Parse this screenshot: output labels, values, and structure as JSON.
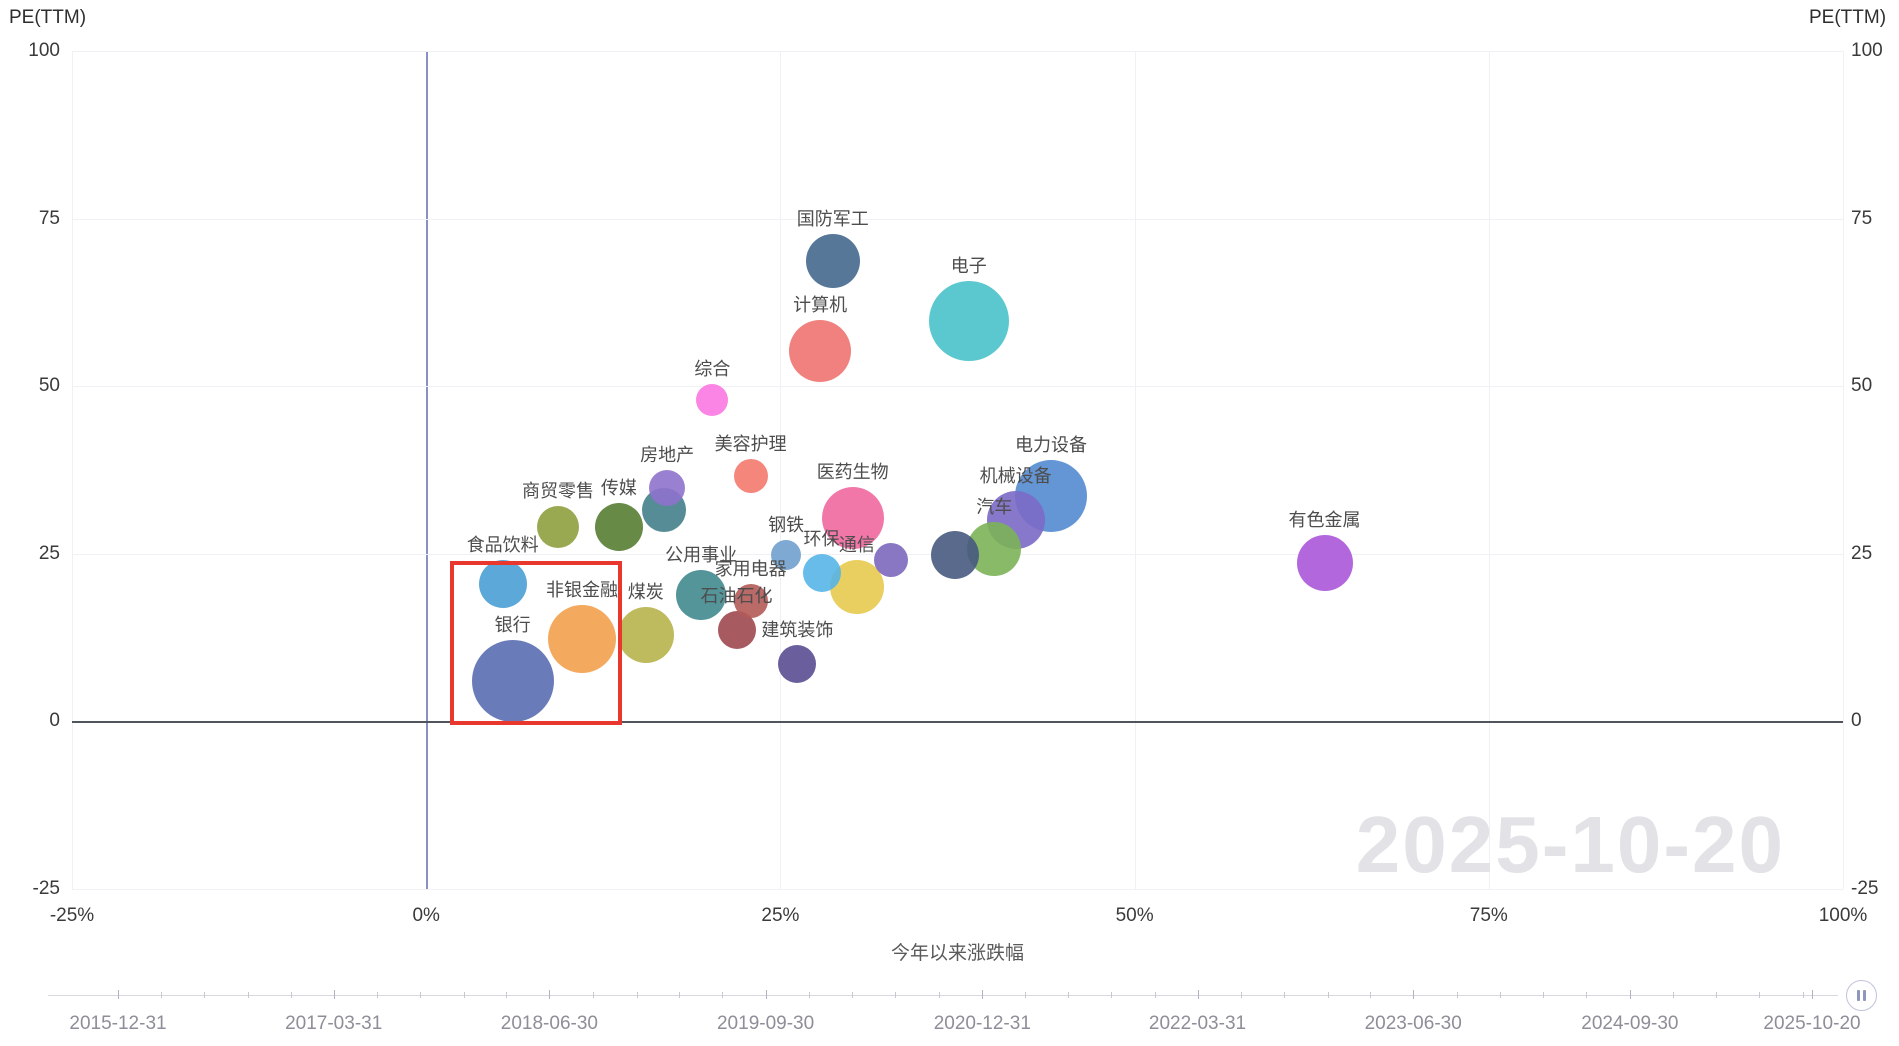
{
  "chart_data": {
    "type": "scatter",
    "title": "",
    "x_label": "今年以来涨跌幅",
    "y_label": "PE(TTM)",
    "xlim": [
      -25,
      100
    ],
    "ylim": [
      -25,
      100
    ],
    "grid": true,
    "watermark": "2025-10-20",
    "x_ticks": [
      {
        "value": -25,
        "label": "-25%"
      },
      {
        "value": 0,
        "label": "0%"
      },
      {
        "value": 25,
        "label": "25%"
      },
      {
        "value": 50,
        "label": "50%"
      },
      {
        "value": 75,
        "label": "75%"
      },
      {
        "value": 100,
        "label": "100%"
      }
    ],
    "y_ticks": [
      {
        "value": 100,
        "label": "100"
      },
      {
        "value": 75,
        "label": "75"
      },
      {
        "value": 50,
        "label": "50"
      },
      {
        "value": 25,
        "label": "25"
      },
      {
        "value": 0,
        "label": "0"
      },
      {
        "value": -25,
        "label": "-25"
      }
    ],
    "colors": {
      "zero_x_line": "#8a8fc7",
      "zero_y_line": "#50545e",
      "gridline": "#f0f0f5",
      "watermark": "#e2e2e7",
      "highlight": "#e8372c"
    },
    "bubbles": [
      {
        "name": "银行",
        "x": 6.1,
        "pe": 6.0,
        "r": 41,
        "color": "#5a6db2"
      },
      {
        "name": "电子",
        "x": 38.3,
        "pe": 59.8,
        "r": 40,
        "color": "#49c2ca"
      },
      {
        "name": "电力设备",
        "x": 44.1,
        "pe": 33.7,
        "r": 36,
        "color": "#5389d0"
      },
      {
        "name": "非银金融",
        "x": 11.0,
        "pe": 12.3,
        "r": 34,
        "color": "#f2a14e"
      },
      {
        "name": "医药生物",
        "x": 30.1,
        "pe": 30.3,
        "r": 31,
        "color": "#f0689e"
      },
      {
        "name": "计算机",
        "x": 27.8,
        "pe": 55.3,
        "r": 31,
        "color": "#ef7370"
      },
      {
        "name": "机械设备",
        "x": 41.6,
        "pe": 30.1,
        "r": 29,
        "color": "#7b69c6"
      },
      {
        "name": "煤炭",
        "x": 15.5,
        "pe": 12.9,
        "r": 28,
        "color": "#b7b24d"
      },
      {
        "name": "有色金属",
        "x": 63.4,
        "pe": 23.6,
        "r": 28,
        "color": "#ab57d9"
      },
      {
        "name": "国防军工",
        "x": 28.7,
        "pe": 68.7,
        "r": 27,
        "color": "#45688e"
      },
      {
        "name": "汽车",
        "x": 40.1,
        "pe": 25.7,
        "r": 27,
        "color": "#7cb258"
      },
      {
        "name": "通信",
        "x": 30.4,
        "pe": 20.1,
        "r": 27,
        "color": "#e7c94f"
      },
      {
        "name": "公用事业",
        "x": 19.4,
        "pe": 18.8,
        "r": 25,
        "color": "#41898f"
      },
      {
        "name": "传媒",
        "x": 13.6,
        "pe": 29.0,
        "r": 24,
        "color": "#567d33"
      },
      {
        "name": "食品饮料",
        "x": 5.4,
        "pe": 20.5,
        "r": 24,
        "color": "#4aa0d5"
      },
      {
        "name": "",
        "x": 37.3,
        "pe": 24.8,
        "r": 24,
        "color": "#475a80"
      },
      {
        "name": "",
        "x": 16.8,
        "pe": 31.5,
        "r": 22,
        "color": "#42808a"
      },
      {
        "name": "商贸零售",
        "x": 9.3,
        "pe": 29.0,
        "r": 21,
        "color": "#8ea03f"
      },
      {
        "name": "环保",
        "x": 27.9,
        "pe": 22.1,
        "r": 19,
        "color": "#56b5e8"
      },
      {
        "name": "石油石化",
        "x": 21.9,
        "pe": 13.6,
        "r": 19,
        "color": "#9e4850"
      },
      {
        "name": "建筑装饰",
        "x": 26.2,
        "pe": 8.5,
        "r": 19,
        "color": "#5a4e91"
      },
      {
        "name": "房地产",
        "x": 17.0,
        "pe": 34.8,
        "r": 18,
        "color": "#8f72cc"
      },
      {
        "name": "家用电器",
        "x": 22.9,
        "pe": 17.9,
        "r": 17,
        "color": "#b25a56"
      },
      {
        "name": "美容护理",
        "x": 22.9,
        "pe": 36.6,
        "r": 17,
        "color": "#f4796e"
      },
      {
        "name": "",
        "x": 32.8,
        "pe": 24.1,
        "r": 17,
        "color": "#7d68be"
      },
      {
        "name": "综合",
        "x": 20.2,
        "pe": 48.0,
        "r": 16,
        "color": "#fb78e2"
      },
      {
        "name": "钢铁",
        "x": 25.4,
        "pe": 24.8,
        "r": 15,
        "color": "#6fa0cd"
      }
    ],
    "highlight_box": {
      "x_min": 1.7,
      "x_max": 13.8,
      "pe_min": -0.5,
      "pe_max": 23.9
    }
  },
  "timeline": {
    "dates": [
      "2015-12-31",
      "2017-03-31",
      "2018-06-30",
      "2019-09-30",
      "2020-12-31",
      "2022-03-31",
      "2023-06-30",
      "2024-09-30",
      "2025-10-20"
    ],
    "current_date": "2025-10-20",
    "icons": {
      "control": "pause-bars"
    }
  }
}
